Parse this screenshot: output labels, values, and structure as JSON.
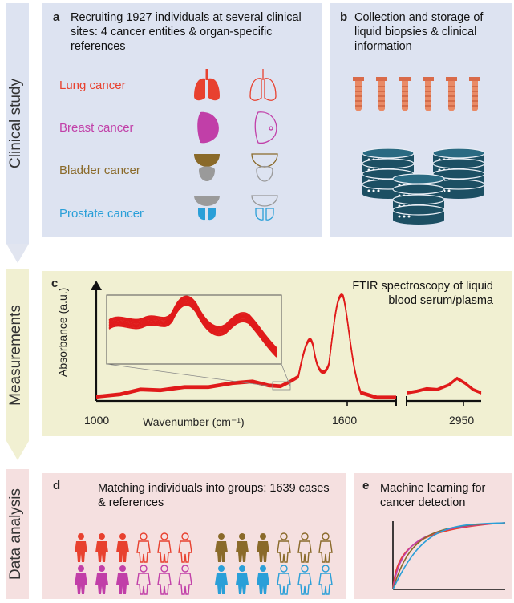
{
  "stages": [
    {
      "label": "Clinical study"
    },
    {
      "label": "Measurements"
    },
    {
      "label": "Data analysis"
    }
  ],
  "panel_a": {
    "letter": "a",
    "title": "Recruiting 1927 individuals at several clinical sites: 4 cancer entities & organ-specific references",
    "cancers": [
      {
        "label": "Lung cancer",
        "color": "#e8412f"
      },
      {
        "label": "Breast cancer",
        "color": "#c13fa8"
      },
      {
        "label": "Bladder cancer",
        "color": "#8a6a2a"
      },
      {
        "label": "Prostate cancer",
        "color": "#2a9fd8"
      }
    ]
  },
  "panel_b": {
    "letter": "b",
    "title": "Collection and storage of liquid biopsies & clinical information",
    "tube_icon": "test-tube-icon",
    "db_icon": "database-icon"
  },
  "panel_c": {
    "letter": "c",
    "title": "FTIR spectroscopy of liquid blood serum/plasma",
    "ylabel": "Absorbance (a.u.)",
    "xlabel": "Wavenumber (cm⁻¹)",
    "ticks": [
      "1000",
      "1600",
      "2950"
    ],
    "line_color": "#e01b1b"
  },
  "panel_d": {
    "letter": "d",
    "title": "Matching individuals into groups: 1639 cases & references",
    "icon": "person-icon"
  },
  "panel_e": {
    "letter": "e",
    "title": "Machine learning for cancer detection",
    "curve_colors": [
      "#e8412f",
      "#c13fa8",
      "#8a6a2a",
      "#2a9fd8"
    ]
  }
}
